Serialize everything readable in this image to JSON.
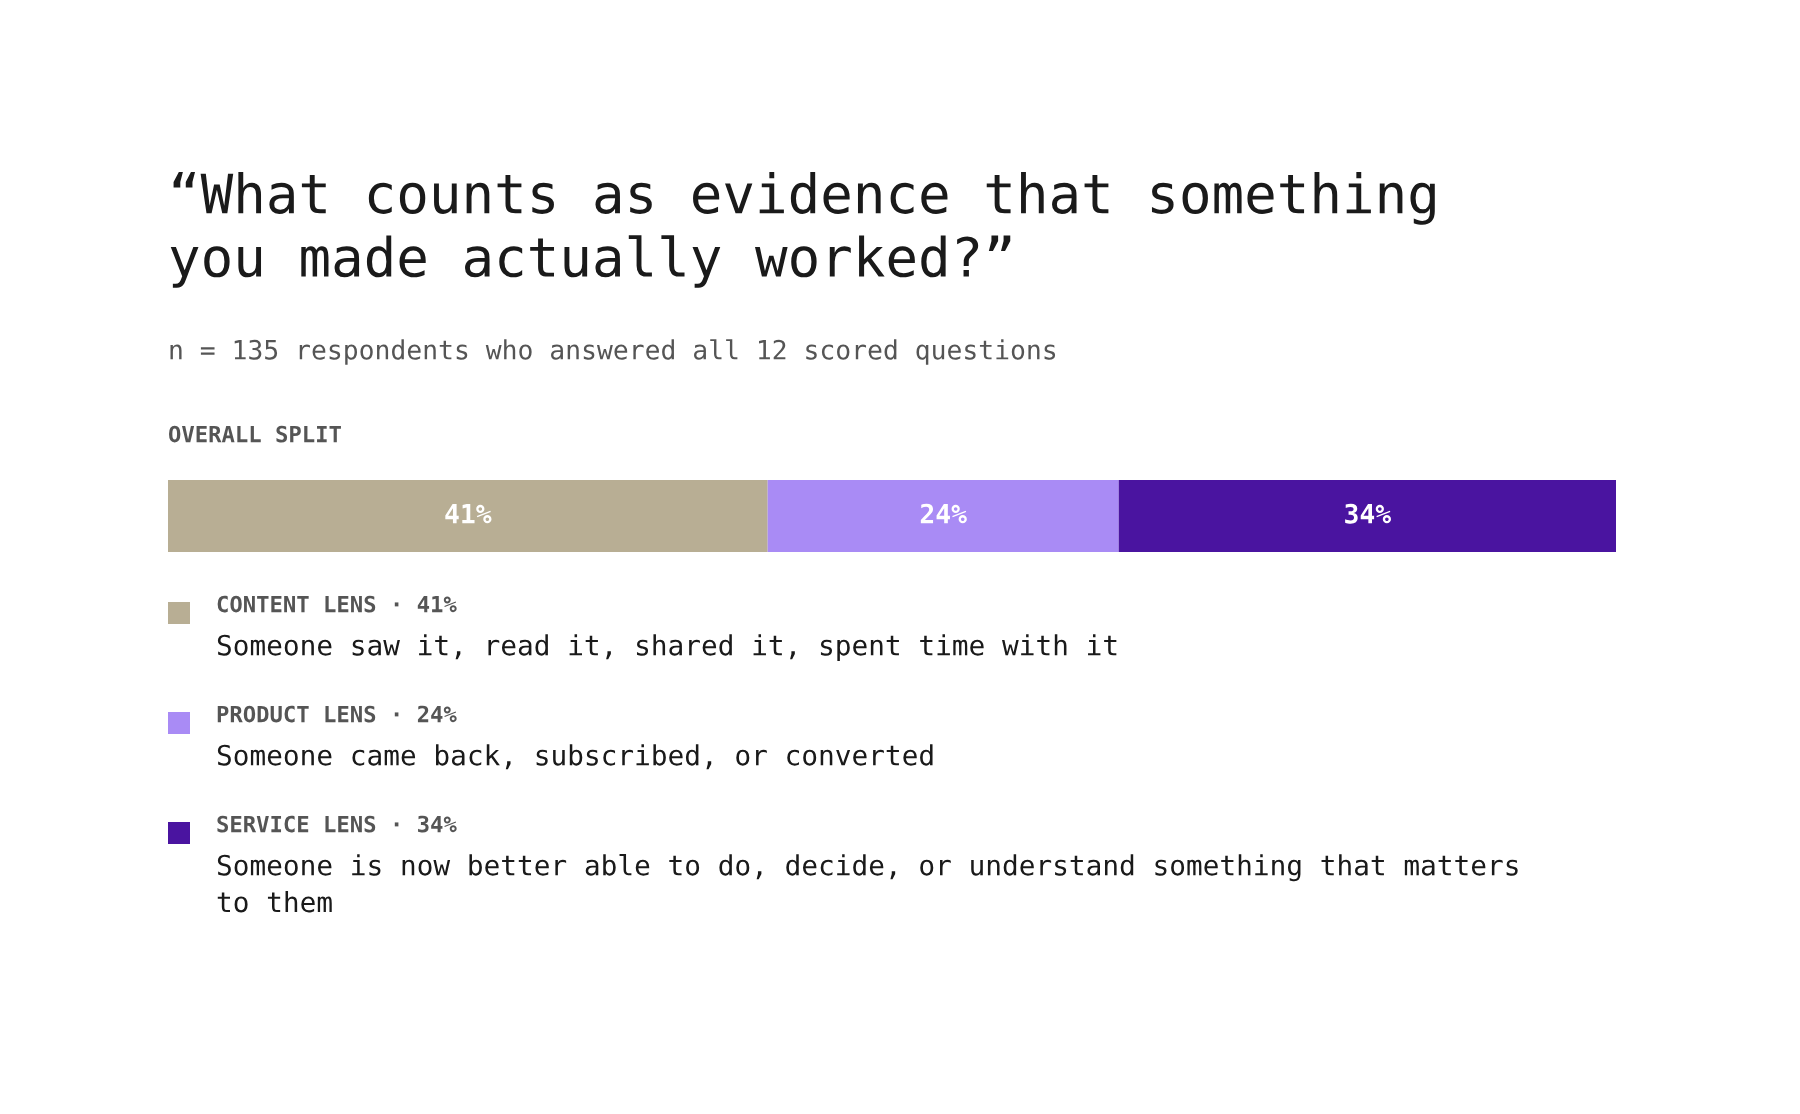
{
  "chart_data": {
    "type": "bar",
    "orientation": "horizontal",
    "stacked": true,
    "title": "“What counts as evidence that something\nyou made actually worked?”",
    "subtitle": "n = 135 respondents who answered all 12 scored questions",
    "categories": [
      null
    ],
    "series": [
      {
        "name": "CONTENT LENS · 41%",
        "color": "#b8ae94",
        "values": [
          41
        ],
        "value_labels": [
          "41%"
        ]
      },
      {
        "name": "PRODUCT LENS · 24%",
        "color": "#a98bf5",
        "values": [
          24
        ],
        "value_labels": [
          "24%"
        ]
      },
      {
        "name": "SERVICE LENS · 34%",
        "color": "#4a14a0",
        "values": [
          34
        ],
        "value_labels": [
          "34%"
        ]
      }
    ],
    "annotations": [
      "OVERALL SPLIT",
      "Someone saw it, read it, shared it, spent time with it",
      "Someone came back, subscribed, or converted",
      "Someone is now better able to do, decide, or understand something that matters\nto them"
    ],
    "tick_labels": false,
    "legend": "bottom"
  }
}
